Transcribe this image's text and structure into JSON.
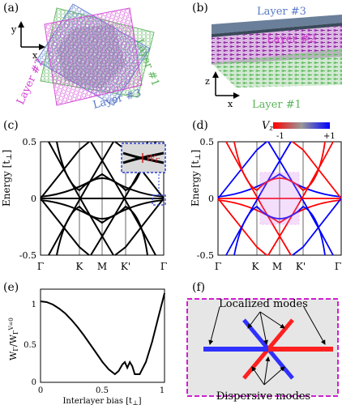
{
  "panels": {
    "a": {
      "label": "(a)",
      "axis_y": "y",
      "axis_x": "x",
      "layer1": "Layer #1",
      "layer2": "Layer #2",
      "layer3": "Layer #3",
      "colors": {
        "layer1": "#5ab35a",
        "layer2": "#d23fd2",
        "layer3": "#5a78c8"
      }
    },
    "b": {
      "label": "(b)",
      "axis_z": "z",
      "axis_x": "x",
      "layer3": "Layer #3",
      "layer2": "Layer #2",
      "layer1": "Layer #1"
    },
    "c": {
      "label": "(c)",
      "ylabel": "Energy [t",
      "ylabel_sub": "⊥",
      "yticks": [
        "0.5",
        "0",
        "-0.5"
      ],
      "xticks": [
        "Γ",
        "K",
        "M",
        "K'",
        "Γ"
      ],
      "inset_label": "W",
      "inset_sub": "Γ"
    },
    "d": {
      "label": "(d)",
      "ylabel": "Energy [t",
      "ylabel_sub": "⊥",
      "yticks": [
        "0.5",
        "0",
        "-0.5"
      ],
      "xticks": [
        "Γ",
        "K",
        "M",
        "K'",
        "Γ"
      ],
      "colorbar_label": "V",
      "colorbar_sub": "z",
      "colorbar_min": "-1",
      "colorbar_max": "+1"
    },
    "e": {
      "label": "(e)",
      "ylabel": "W",
      "xlabel": "Interlayer bias [t",
      "xlabel_sub": "⊥",
      "yticks": [
        "1",
        "0.5",
        "0"
      ],
      "xticks": [
        "0",
        "0.5",
        "1"
      ]
    },
    "f": {
      "label": "(f)",
      "top_label": "Localized modes",
      "bottom_label": "Dispersive modes"
    }
  },
  "chart_data": [
    {
      "type": "line",
      "panel": "c",
      "xticks": [
        "Γ",
        "K",
        "M",
        "K'",
        "Γ"
      ],
      "ylabel": "Energy [t⊥]",
      "ylim": [
        -0.5,
        0.5
      ]
    },
    {
      "type": "line",
      "panel": "d",
      "xticks": [
        "Γ",
        "K",
        "M",
        "K'",
        "Γ"
      ],
      "ylabel": "Energy [t⊥]",
      "ylim": [
        -0.5,
        0.5
      ],
      "colorbar": {
        "min": -1,
        "max": 1,
        "colors": [
          "#ff0000",
          "#999999",
          "#0000ff"
        ]
      }
    },
    {
      "type": "line",
      "panel": "e",
      "xlabel": "Interlayer bias [t⊥]",
      "ylabel": "WΓ/WΓ(V=0)",
      "xlim": [
        0,
        1
      ],
      "ylim": [
        0,
        1.15
      ],
      "x": [
        0,
        0.05,
        0.1,
        0.15,
        0.2,
        0.25,
        0.3,
        0.35,
        0.4,
        0.45,
        0.5,
        0.55,
        0.6,
        0.63,
        0.66,
        0.68,
        0.7,
        0.72,
        0.74,
        0.76,
        0.8,
        0.85,
        0.9,
        0.95,
        1.0
      ],
      "y": [
        1.0,
        0.99,
        0.96,
        0.91,
        0.85,
        0.77,
        0.68,
        0.58,
        0.47,
        0.36,
        0.25,
        0.16,
        0.1,
        0.14,
        0.22,
        0.25,
        0.18,
        0.25,
        0.2,
        0.1,
        0.1,
        0.25,
        0.5,
        0.8,
        1.1
      ]
    }
  ]
}
